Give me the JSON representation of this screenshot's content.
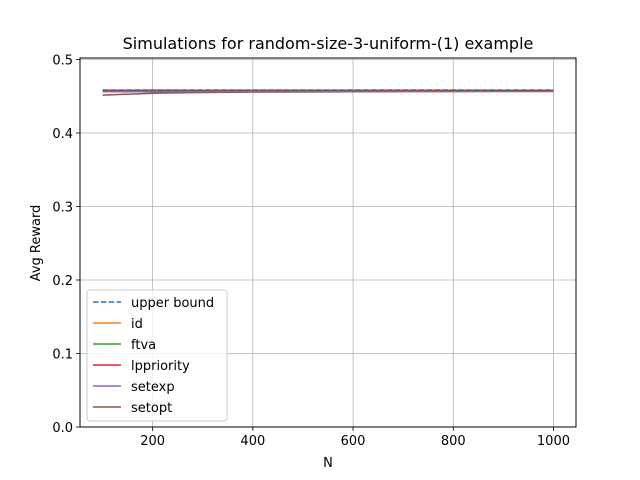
{
  "chart_data": {
    "type": "line",
    "title": "Simulations for random-size-3-uniform-(1) example",
    "xlabel": "N",
    "ylabel": "Avg Reward",
    "xlim": [
      55,
      1045
    ],
    "ylim": [
      0.0,
      0.502
    ],
    "xticks": [
      200,
      400,
      600,
      800,
      1000
    ],
    "yticks": [
      0.0,
      0.1,
      0.2,
      0.3,
      0.4,
      0.5
    ],
    "xtick_labels": [
      "200",
      "400",
      "600",
      "800",
      "1000"
    ],
    "ytick_labels": [
      "0.0",
      "0.1",
      "0.2",
      "0.3",
      "0.4",
      "0.5"
    ],
    "grid": true,
    "legend_position": "lower-left",
    "x": [
      100,
      200,
      300,
      400,
      500,
      600,
      700,
      800,
      900,
      1000
    ],
    "series": [
      {
        "name": "upper bound",
        "color": "#1f77b4",
        "dash": true,
        "values": [
          0.4585,
          0.4585,
          0.4585,
          0.4585,
          0.4585,
          0.4585,
          0.4585,
          0.4585,
          0.4585,
          0.4585
        ]
      },
      {
        "name": "id",
        "color": "#ff7f0e",
        "dash": false,
        "values": [
          0.4565,
          0.4566,
          0.4567,
          0.4567,
          0.4568,
          0.4568,
          0.4568,
          0.4569,
          0.4569,
          0.4569
        ]
      },
      {
        "name": "ftva",
        "color": "#2ca02c",
        "dash": false,
        "values": [
          0.456,
          0.4562,
          0.4564,
          0.4565,
          0.4566,
          0.4567,
          0.4567,
          0.4568,
          0.4568,
          0.4568
        ]
      },
      {
        "name": "lppriority",
        "color": "#d62728",
        "dash": false,
        "values": [
          0.458,
          0.458,
          0.4579,
          0.4579,
          0.4579,
          0.4579,
          0.4579,
          0.4579,
          0.4579,
          0.4579
        ]
      },
      {
        "name": "setexp",
        "color": "#9467bd",
        "dash": false,
        "values": [
          0.456,
          0.4562,
          0.4564,
          0.4565,
          0.4566,
          0.4566,
          0.4567,
          0.4567,
          0.4568,
          0.4568
        ]
      },
      {
        "name": "setopt",
        "color": "#8c564b",
        "dash": false,
        "values": [
          0.4515,
          0.454,
          0.455,
          0.4555,
          0.4558,
          0.456,
          0.4562,
          0.4563,
          0.4564,
          0.4565
        ]
      }
    ]
  }
}
